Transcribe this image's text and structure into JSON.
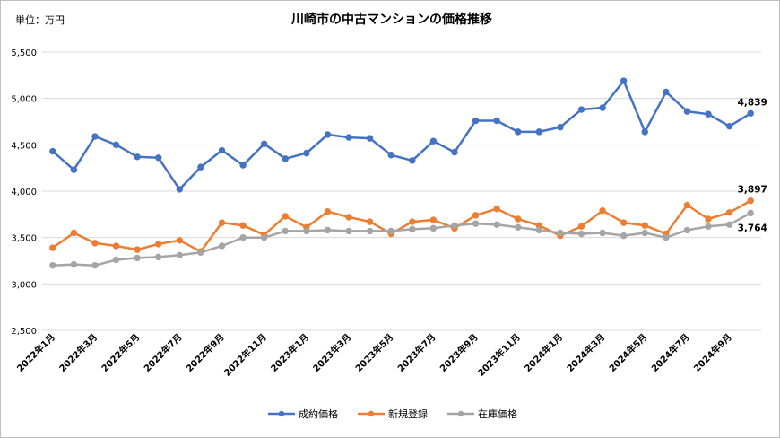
{
  "chart_data": {
    "type": "line",
    "title": "川崎市の中古マンションの価格推移",
    "unit_label": "単位：万円",
    "ylim": [
      2500,
      5500
    ],
    "yticks": [
      2500,
      3000,
      3500,
      4000,
      4500,
      5000,
      5500
    ],
    "ytick_labels": [
      "2,500",
      "3,000",
      "3,500",
      "4,000",
      "4,500",
      "5,000",
      "5,500"
    ],
    "grid": "horizontal",
    "legend_position": "bottom",
    "x": [
      "2022年1月",
      "2022年2月",
      "2022年3月",
      "2022年4月",
      "2022年5月",
      "2022年6月",
      "2022年7月",
      "2022年8月",
      "2022年9月",
      "2022年10月",
      "2022年11月",
      "2022年12月",
      "2023年1月",
      "2023年2月",
      "2023年3月",
      "2023年4月",
      "2023年5月",
      "2023年6月",
      "2023年7月",
      "2023年8月",
      "2023年9月",
      "2023年10月",
      "2023年11月",
      "2023年12月",
      "2024年1月",
      "2024年2月",
      "2024年3月",
      "2024年4月",
      "2024年5月",
      "2024年6月",
      "2024年7月",
      "2024年8月",
      "2024年9月",
      "2024年10月"
    ],
    "xtick_labels": [
      "2022年1月",
      "2022年3月",
      "2022年5月",
      "2022年7月",
      "2022年9月",
      "2022年11月",
      "2023年1月",
      "2023年3月",
      "2023年5月",
      "2023年7月",
      "2023年9月",
      "2023年11月",
      "2024年1月",
      "2024年3月",
      "2024年5月",
      "2024年7月",
      "2024年9月"
    ],
    "series": [
      {
        "name": "成約価格",
        "color": "#4472C4",
        "values": [
          4430,
          4230,
          4590,
          4500,
          4370,
          4360,
          4020,
          4260,
          4440,
          4280,
          4510,
          4350,
          4410,
          4610,
          4580,
          4570,
          4390,
          4330,
          4540,
          4420,
          4760,
          4760,
          4640,
          4640,
          4690,
          4880,
          4900,
          5190,
          4640,
          5070,
          4860,
          4830,
          4700,
          4839
        ],
        "last_label": "4,839"
      },
      {
        "name": "新規登録",
        "color": "#ED7D31",
        "values": [
          3390,
          3550,
          3440,
          3410,
          3370,
          3430,
          3470,
          3350,
          3660,
          3630,
          3530,
          3730,
          3610,
          3780,
          3720,
          3670,
          3540,
          3670,
          3690,
          3600,
          3740,
          3810,
          3700,
          3630,
          3520,
          3620,
          3790,
          3660,
          3630,
          3540,
          3850,
          3700,
          3770,
          3897
        ],
        "last_label": "3,897"
      },
      {
        "name": "在庫価格",
        "color": "#A5A5A5",
        "values": [
          3200,
          3210,
          3200,
          3260,
          3280,
          3290,
          3310,
          3340,
          3410,
          3500,
          3500,
          3570,
          3570,
          3580,
          3570,
          3570,
          3570,
          3590,
          3600,
          3630,
          3650,
          3640,
          3610,
          3580,
          3550,
          3540,
          3550,
          3520,
          3550,
          3500,
          3580,
          3620,
          3640,
          3764
        ],
        "last_label": "3,764"
      }
    ]
  }
}
